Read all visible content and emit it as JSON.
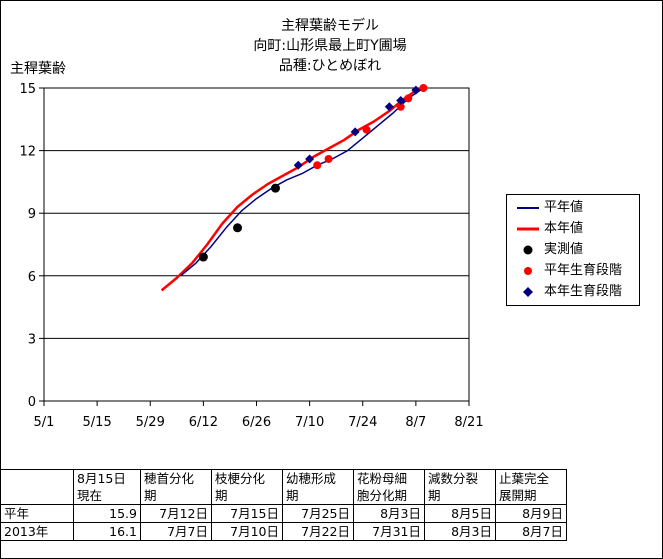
{
  "chart_data": {
    "type": "line",
    "title": [
      "主稈葉齢モデル",
      "向町:山形県最上町Y圃場",
      "品種:ひとめぼれ"
    ],
    "ylabel": "主稈葉齢",
    "ylim": [
      0,
      15
    ],
    "yticks": [
      0,
      3,
      6,
      9,
      12,
      15
    ],
    "xlim": [
      "5/1",
      "8/21"
    ],
    "xticks": [
      "5/1",
      "5/15",
      "5/29",
      "6/12",
      "6/26",
      "7/10",
      "7/24",
      "8/7",
      "8/21"
    ],
    "grid": "horizontal",
    "legend_position": "right",
    "series": [
      {
        "name": "平年値",
        "kind": "line",
        "color": "#000080",
        "x": [
          "6/6",
          "6/10",
          "6/14",
          "6/18",
          "6/22",
          "6/26",
          "6/30",
          "7/4",
          "7/8",
          "7/12",
          "7/16",
          "7/20",
          "7/24",
          "7/28",
          "8/1",
          "8/5",
          "8/9"
        ],
        "y": [
          6.0,
          6.6,
          7.4,
          8.3,
          9.1,
          9.7,
          10.2,
          10.6,
          10.9,
          11.3,
          11.6,
          12.0,
          12.6,
          13.2,
          13.8,
          14.5,
          15.0
        ]
      },
      {
        "name": "本年値",
        "kind": "line",
        "color": "#ff0000",
        "x": [
          "6/1",
          "6/5",
          "6/9",
          "6/13",
          "6/17",
          "6/21",
          "6/25",
          "6/29",
          "7/3",
          "7/7",
          "7/11",
          "7/15",
          "7/19",
          "7/23",
          "7/27",
          "7/31",
          "8/4",
          "8/8"
        ],
        "y": [
          5.3,
          5.9,
          6.6,
          7.5,
          8.5,
          9.3,
          9.9,
          10.4,
          10.8,
          11.2,
          11.7,
          12.1,
          12.5,
          13.0,
          13.4,
          13.9,
          14.5,
          15.0
        ]
      },
      {
        "name": "実測値",
        "kind": "marker",
        "marker": "circle",
        "color": "#000000",
        "x": [
          "6/12",
          "6/21",
          "7/1"
        ],
        "y": [
          6.9,
          8.3,
          10.2
        ]
      },
      {
        "name": "平年生育段階",
        "kind": "marker",
        "marker": "circle",
        "color": "#ff0000",
        "x": [
          "7/12",
          "7/15",
          "7/25",
          "8/3",
          "8/5",
          "8/9"
        ],
        "y": [
          11.3,
          11.6,
          13.0,
          14.1,
          14.5,
          15.0
        ]
      },
      {
        "name": "本年生育段階",
        "kind": "marker",
        "marker": "diamond",
        "color": "#000080",
        "x": [
          "7/7",
          "7/10",
          "7/22",
          "7/31",
          "8/3",
          "8/7"
        ],
        "y": [
          11.3,
          11.6,
          12.9,
          14.1,
          14.4,
          14.9
        ]
      }
    ]
  },
  "stage_table": {
    "headers": [
      [
        "8月15日",
        "現在"
      ],
      [
        "穂首分化",
        "期"
      ],
      [
        "枝梗分化",
        "期"
      ],
      [
        "幼穂形成",
        "期"
      ],
      [
        "花粉母細",
        "胞分化期"
      ],
      [
        "減数分裂",
        "期"
      ],
      [
        "止葉完全",
        "展開期"
      ]
    ],
    "rows": [
      {
        "label": "平年",
        "cells": [
          "15.9",
          "7月12日",
          "7月15日",
          "7月25日",
          "8月3日",
          "8月5日",
          "8月9日"
        ]
      },
      {
        "label": "2013年",
        "cells": [
          "16.1",
          "7月7日",
          "7月10日",
          "7月22日",
          "7月31日",
          "8月3日",
          "8月7日"
        ]
      }
    ]
  }
}
